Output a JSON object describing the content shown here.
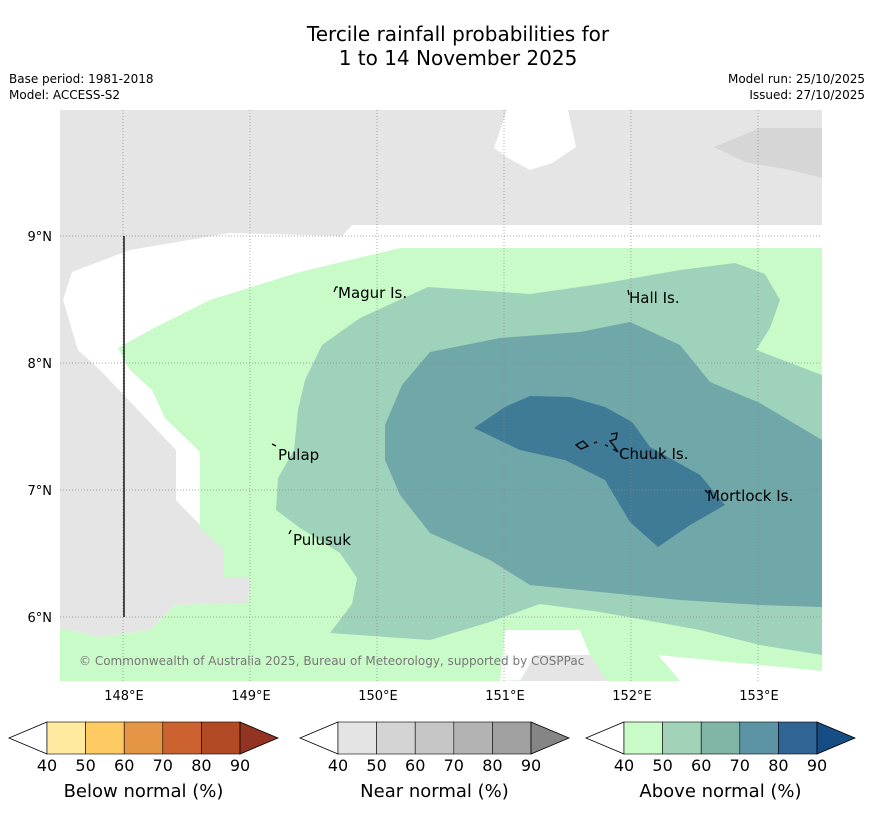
{
  "header": {
    "title_line1": "Tercile rainfall probabilities for",
    "title_line2": "1 to 14 November 2025",
    "base_period": "Base period: 1981-2018",
    "model": "Model: ACCESS-S2",
    "model_run": "Model run: 25/10/2025",
    "issued": "Issued: 27/10/2025"
  },
  "map": {
    "lat_labels": [
      "9°N",
      "8°N",
      "7°N",
      "6°N"
    ],
    "lon_labels": [
      "148°E",
      "149°E",
      "150°E",
      "151°E",
      "152°E",
      "153°E"
    ],
    "places": [
      "Magur Is.",
      "Hall Is.",
      "Pulap",
      "Chuuk Is.",
      "Mortlock Is.",
      "Pulusuk"
    ],
    "copyright": "© Commonwealth of Australia 2025, Bureau of Meteorology, supported by COSPPac",
    "categories": {
      "below_normal": [
        "#ffeaa0",
        "#fecb62",
        "#e49545",
        "#cc6230",
        "#b34a26",
        "#933321"
      ],
      "near_normal": [
        "#e4e4e4",
        "#d4d4d4",
        "#c6c6c6",
        "#b3b3b3",
        "#a0a0a0",
        "#858585"
      ],
      "above_normal": [
        "#c9fbc9",
        "#a2d3b9",
        "#80b5a8",
        "#5d94a5",
        "#306494",
        "#164d85"
      ]
    }
  },
  "colorbars": [
    {
      "name": "below-normal",
      "title": "Below normal (%)",
      "ticks": [
        "40",
        "50",
        "60",
        "70",
        "80",
        "90"
      ]
    },
    {
      "name": "near-normal",
      "title": "Near normal (%)",
      "ticks": [
        "40",
        "50",
        "60",
        "70",
        "80",
        "90"
      ]
    },
    {
      "name": "above-normal",
      "title": "Above normal (%)",
      "ticks": [
        "40",
        "50",
        "60",
        "70",
        "80",
        "90"
      ]
    }
  ]
}
